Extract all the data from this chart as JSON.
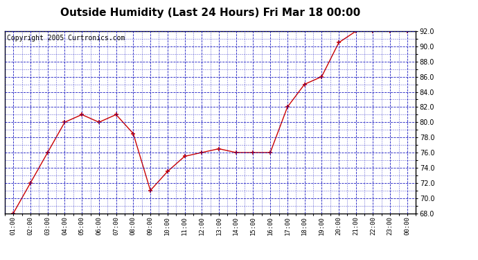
{
  "title": "Outside Humidity (Last 24 Hours) Fri Mar 18 00:00",
  "copyright": "Copyright 2005 Curtronics.com",
  "x_labels": [
    "01:00",
    "02:00",
    "03:00",
    "04:00",
    "05:00",
    "06:00",
    "07:00",
    "08:00",
    "09:00",
    "10:00",
    "11:00",
    "12:00",
    "13:00",
    "14:00",
    "15:00",
    "16:00",
    "17:00",
    "18:00",
    "19:00",
    "20:00",
    "21:00",
    "22:00",
    "23:00",
    "00:00"
  ],
  "x_values": [
    1,
    2,
    3,
    4,
    5,
    6,
    7,
    8,
    9,
    10,
    11,
    12,
    13,
    14,
    15,
    16,
    17,
    18,
    19,
    20,
    21,
    22,
    23,
    24
  ],
  "y_values": [
    68.0,
    72.0,
    76.0,
    80.0,
    81.0,
    80.0,
    81.0,
    78.5,
    71.0,
    73.5,
    75.5,
    76.0,
    76.5,
    76.0,
    76.0,
    76.0,
    82.0,
    85.0,
    86.0,
    90.5,
    92.0,
    92.0,
    92.0,
    92.0
  ],
  "ylim": [
    68.0,
    92.0
  ],
  "yticks": [
    68.0,
    70.0,
    72.0,
    74.0,
    76.0,
    78.0,
    80.0,
    82.0,
    84.0,
    86.0,
    88.0,
    90.0,
    92.0
  ],
  "line_color": "#cc0000",
  "marker_color": "#cc0000",
  "bg_color": "#ffffff",
  "plot_bg_color": "#ffffff",
  "grid_color": "#0000bb",
  "title_color": "#000000",
  "title_fontsize": 11,
  "copyright_fontsize": 7
}
